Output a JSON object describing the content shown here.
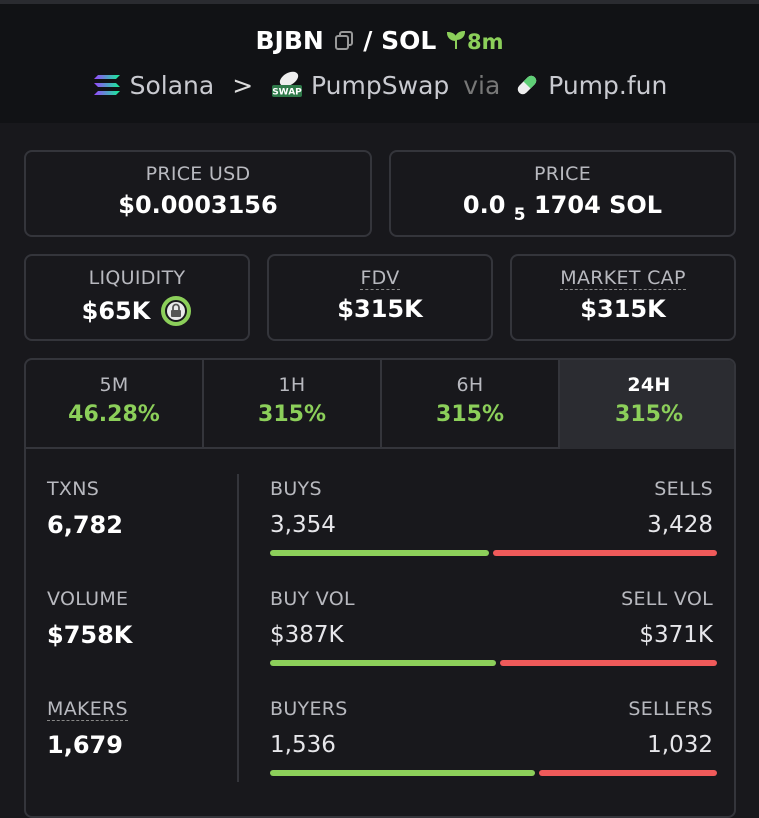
{
  "header": {
    "base": "BJBN",
    "quote": "/ SOL",
    "age": "8m",
    "chain": "Solana",
    "dex_badge": "SWAP",
    "dex": "PumpSwap",
    "via": "via",
    "launchpad": "Pump.fun"
  },
  "price_cards": [
    {
      "label": "PRICE USD",
      "value": "$0.0003156"
    },
    {
      "label": "PRICE",
      "value_head": "0.0",
      "value_zeros": "5",
      "value_tail": "1704 SOL"
    }
  ],
  "metric_cards": [
    {
      "label": "LIQUIDITY",
      "value": "$65K",
      "locked": true
    },
    {
      "label": "FDV",
      "value": "$315K",
      "underlined": true
    },
    {
      "label": "MARKET CAP",
      "value": "$315K",
      "underlined": true
    }
  ],
  "tabs": [
    {
      "label": "5M",
      "change": "46.28%"
    },
    {
      "label": "1H",
      "change": "315%"
    },
    {
      "label": "6H",
      "change": "315%"
    },
    {
      "label": "24H",
      "change": "315%"
    }
  ],
  "active_tab": 3,
  "stats": [
    {
      "label": "TXNS",
      "value": "6,782",
      "left_label": "BUYS",
      "left_value": "3,354",
      "right_label": "SELLS",
      "right_value": "3,428"
    },
    {
      "label": "VOLUME",
      "value": "$758K",
      "left_label": "BUY VOL",
      "left_value": "$387K",
      "right_label": "SELL VOL",
      "right_value": "$371K"
    },
    {
      "label": "MAKERS",
      "value": "1,679",
      "underlined": true,
      "left_label": "BUYERS",
      "left_value": "1,536",
      "right_label": "SELLERS",
      "right_value": "1,032"
    }
  ]
}
